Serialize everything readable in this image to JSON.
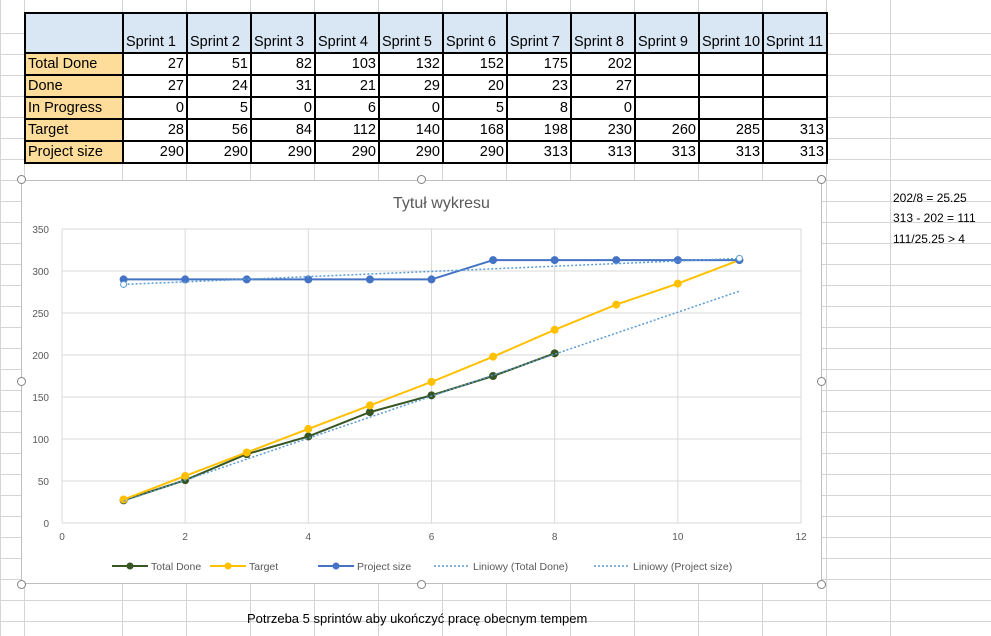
{
  "table": {
    "headers": [
      "Sprint 1",
      "Sprint 2",
      "Sprint 3",
      "Sprint 4",
      "Sprint 5",
      "Sprint 6",
      "Sprint 7",
      "Sprint 8",
      "Sprint 9",
      "Sprint 10",
      "Sprint 11"
    ],
    "rows": [
      {
        "label": "Total Done",
        "values": [
          "27",
          "51",
          "82",
          "103",
          "132",
          "152",
          "175",
          "202",
          "",
          "",
          ""
        ]
      },
      {
        "label": "Done",
        "values": [
          "27",
          "24",
          "31",
          "21",
          "29",
          "20",
          "23",
          "27",
          "",
          "",
          ""
        ]
      },
      {
        "label": "In Progress",
        "values": [
          "0",
          "5",
          "0",
          "6",
          "0",
          "5",
          "8",
          "0",
          "",
          "",
          ""
        ]
      },
      {
        "label": "Target",
        "values": [
          "28",
          "56",
          "84",
          "112",
          "140",
          "168",
          "198",
          "230",
          "260",
          "285",
          "313"
        ]
      },
      {
        "label": "Project size",
        "values": [
          "290",
          "290",
          "290",
          "290",
          "290",
          "290",
          "313",
          "313",
          "313",
          "313",
          "313"
        ]
      }
    ]
  },
  "calculations": [
    "202/8 = 25.25",
    "313 - 202 = 111",
    "111/25.25 > 4"
  ],
  "footnote": "Potrzeba 5 sprintów aby ukończyć pracę obecnym tempem",
  "chart_data": {
    "type": "scatter",
    "title": "Tytuł wykresu",
    "xlim": [
      0,
      12
    ],
    "ylim": [
      0,
      350
    ],
    "x_ticks": [
      "0",
      "2",
      "4",
      "6",
      "8",
      "10",
      "12"
    ],
    "y_ticks": [
      "0",
      "50",
      "100",
      "150",
      "200",
      "250",
      "300",
      "350"
    ],
    "grid": true,
    "legend_position": "bottom",
    "series": [
      {
        "name": "Total Done",
        "color": "#375623",
        "style": "line-markers",
        "x": [
          1,
          2,
          3,
          4,
          5,
          6,
          7,
          8
        ],
        "y": [
          27,
          51,
          82,
          103,
          132,
          152,
          175,
          202
        ]
      },
      {
        "name": "Target",
        "color": "#ffc000",
        "style": "line-markers",
        "x": [
          1,
          2,
          3,
          4,
          5,
          6,
          7,
          8,
          9,
          10,
          11
        ],
        "y": [
          28,
          56,
          84,
          112,
          140,
          168,
          198,
          230,
          260,
          285,
          313
        ]
      },
      {
        "name": "Project size",
        "color": "#4472c4",
        "style": "line-markers",
        "x": [
          1,
          2,
          3,
          4,
          5,
          6,
          7,
          8,
          9,
          10,
          11
        ],
        "y": [
          290,
          290,
          290,
          290,
          290,
          290,
          313,
          313,
          313,
          313,
          313
        ]
      },
      {
        "name": "Liniowy (Total Done)",
        "color": "#5b9bd5",
        "style": "dotted",
        "x": [
          1,
          11
        ],
        "y": [
          26,
          276
        ]
      },
      {
        "name": "Liniowy (Project size)",
        "color": "#5b9bd5",
        "style": "dotted",
        "x": [
          1,
          11
        ],
        "y": [
          284,
          315
        ]
      }
    ]
  }
}
